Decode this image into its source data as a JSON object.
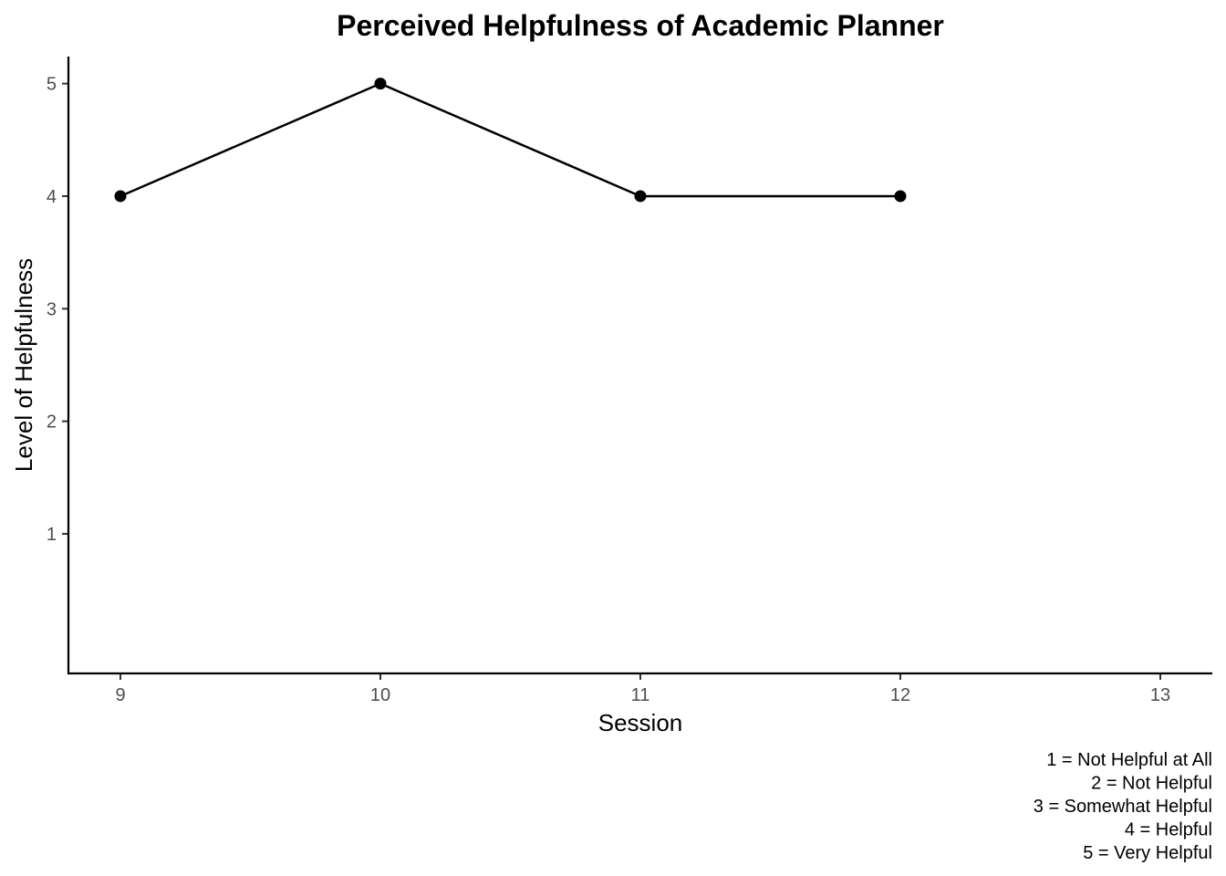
{
  "chart_data": {
    "type": "line",
    "title": "Perceived Helpfulness of Academic Planner",
    "xlabel": "Session",
    "ylabel": "Level of Helpfulness",
    "x_ticks": [
      9,
      10,
      11,
      12,
      13
    ],
    "y_ticks": [
      1,
      2,
      3,
      4,
      5
    ],
    "xlim": [
      8.8,
      13.2
    ],
    "ylim": [
      -0.24,
      5.24
    ],
    "grid": false,
    "legend": "none",
    "series": [
      {
        "x": [
          9,
          10,
          11,
          12
        ],
        "y": [
          4,
          5,
          4,
          4
        ],
        "color": "#000000",
        "marker": "circle"
      }
    ],
    "caption": [
      "1 = Not Helpful at All",
      "2 = Not Helpful",
      "3 = Somewhat Helpful",
      "4 = Helpful",
      "5 = Very Helpful"
    ]
  }
}
